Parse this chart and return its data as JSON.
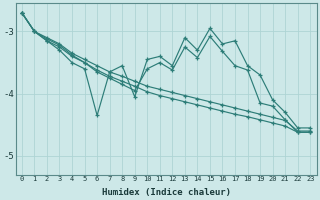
{
  "xlabel": "Humidex (Indice chaleur)",
  "ylabel": "",
  "background_color": "#cde8e8",
  "line_color": "#2d7d78",
  "grid_color": "#aed4d4",
  "xlim": [
    -0.5,
    23.5
  ],
  "ylim": [
    -5.3,
    -2.55
  ],
  "yticks": [
    -5,
    -4,
    -3
  ],
  "xticks": [
    0,
    1,
    2,
    3,
    4,
    5,
    6,
    7,
    8,
    9,
    10,
    11,
    12,
    13,
    14,
    15,
    16,
    17,
    18,
    19,
    20,
    21,
    22,
    23
  ],
  "series": [
    {
      "x": [
        0,
        1,
        2,
        3,
        4,
        5,
        6,
        7,
        8,
        9,
        10,
        11,
        12,
        13,
        14,
        15,
        16,
        17,
        18,
        19,
        20,
        21,
        22,
        23
      ],
      "y": [
        -2.7,
        -3.0,
        -3.15,
        -3.3,
        -3.5,
        -3.6,
        -4.35,
        -3.65,
        -3.55,
        -4.05,
        -3.45,
        -3.4,
        -3.55,
        -3.1,
        -3.3,
        -2.95,
        -3.2,
        -3.15,
        -3.55,
        -3.7,
        -4.1,
        -4.3,
        -4.55,
        -4.55
      ]
    },
    {
      "x": [
        0,
        1,
        2,
        3,
        4,
        5,
        6,
        7,
        8,
        9,
        10,
        11,
        12,
        13,
        14,
        15,
        16,
        17,
        18,
        19,
        20,
        21,
        22,
        23
      ],
      "y": [
        -2.7,
        -3.0,
        -3.1,
        -3.2,
        -3.35,
        -3.45,
        -3.55,
        -3.65,
        -3.72,
        -3.8,
        -3.88,
        -3.93,
        -3.98,
        -4.03,
        -4.08,
        -4.13,
        -4.18,
        -4.23,
        -4.28,
        -4.33,
        -4.38,
        -4.43,
        -4.6,
        -4.6
      ]
    },
    {
      "x": [
        0,
        1,
        2,
        3,
        4,
        5,
        6,
        7,
        8,
        9,
        10,
        11,
        12,
        13,
        14,
        15,
        16,
        17,
        18,
        19,
        20,
        21,
        22,
        23
      ],
      "y": [
        -2.7,
        -3.0,
        -3.12,
        -3.22,
        -3.38,
        -3.5,
        -3.62,
        -3.72,
        -3.8,
        -3.88,
        -3.97,
        -4.03,
        -4.08,
        -4.13,
        -4.18,
        -4.23,
        -4.28,
        -4.33,
        -4.37,
        -4.42,
        -4.47,
        -4.52,
        -4.62,
        -4.62
      ]
    },
    {
      "x": [
        0,
        1,
        2,
        3,
        4,
        5,
        6,
        7,
        8,
        9,
        10,
        11,
        12,
        13,
        14,
        15,
        16,
        17,
        18,
        19,
        20,
        21,
        22,
        23
      ],
      "y": [
        -2.7,
        -3.0,
        -3.15,
        -3.25,
        -3.4,
        -3.5,
        -3.65,
        -3.75,
        -3.85,
        -3.95,
        -3.6,
        -3.5,
        -3.62,
        -3.25,
        -3.42,
        -3.08,
        -3.32,
        -3.55,
        -3.62,
        -4.15,
        -4.2,
        -4.42,
        -4.62,
        -4.62
      ]
    }
  ]
}
